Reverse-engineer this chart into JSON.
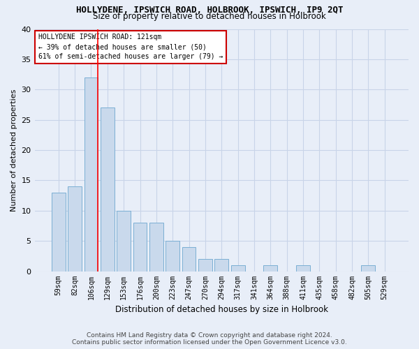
{
  "title": "HOLLYDENE, IPSWICH ROAD, HOLBROOK, IPSWICH, IP9 2QT",
  "subtitle": "Size of property relative to detached houses in Holbrook",
  "xlabel": "Distribution of detached houses by size in Holbrook",
  "ylabel": "Number of detached properties",
  "categories": [
    "59sqm",
    "82sqm",
    "106sqm",
    "129sqm",
    "153sqm",
    "176sqm",
    "200sqm",
    "223sqm",
    "247sqm",
    "270sqm",
    "294sqm",
    "317sqm",
    "341sqm",
    "364sqm",
    "388sqm",
    "411sqm",
    "435sqm",
    "458sqm",
    "482sqm",
    "505sqm",
    "529sqm"
  ],
  "values": [
    13,
    14,
    32,
    27,
    10,
    8,
    8,
    5,
    4,
    2,
    2,
    1,
    0,
    1,
    0,
    1,
    0,
    0,
    0,
    1,
    0
  ],
  "bar_color": "#c9d9ec",
  "bar_edge_color": "#7bafd4",
  "grid_color": "#c8d4e8",
  "background_color": "#e8eef8",
  "annotation_box_color": "#ffffff",
  "annotation_border_color": "#cc0000",
  "red_line_index": 2,
  "annotation_line1": "HOLLYDENE IPSWICH ROAD: 121sqm",
  "annotation_line2": "← 39% of detached houses are smaller (50)",
  "annotation_line3": "61% of semi-detached houses are larger (79) →",
  "footer1": "Contains HM Land Registry data © Crown copyright and database right 2024.",
  "footer2": "Contains public sector information licensed under the Open Government Licence v3.0.",
  "ylim": [
    0,
    40
  ],
  "yticks": [
    0,
    5,
    10,
    15,
    20,
    25,
    30,
    35,
    40
  ]
}
